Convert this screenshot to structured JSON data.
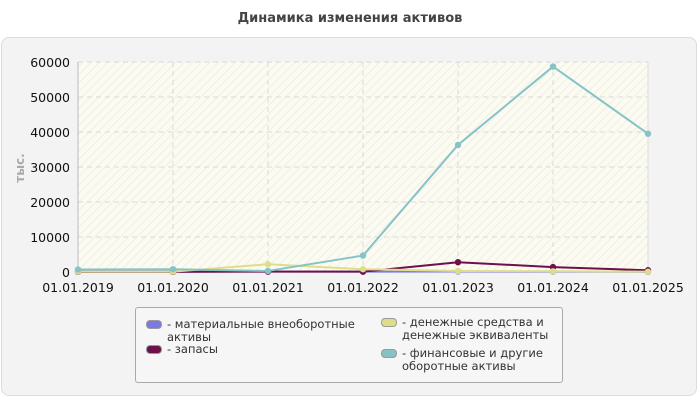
{
  "chart_data": {
    "type": "line",
    "title": "Динамика изменения активов",
    "ylabel": "тыс.",
    "xlabel": "",
    "categories": [
      "01.01.2019",
      "01.01.2020",
      "01.01.2021",
      "01.01.2022",
      "01.01.2023",
      "01.01.2024",
      "01.01.2025"
    ],
    "ylim": [
      0,
      60000
    ],
    "yticks": [
      "0",
      "10000",
      "20000",
      "30000",
      "40000",
      "50000",
      "60000"
    ],
    "grid": true,
    "legend_position": "bottom",
    "series": [
      {
        "name": "- материальные внеоборотные активы",
        "color": "#7b78e8",
        "values": [
          200,
          200,
          150,
          100,
          150,
          100,
          50
        ]
      },
      {
        "name": "- запасы",
        "color": "#6e1049",
        "values": [
          50,
          50,
          100,
          100,
          2800,
          1400,
          500
        ]
      },
      {
        "name": "- денежные средства и денежные эквиваленты",
        "color": "#dede8a",
        "values": [
          100,
          100,
          2200,
          800,
          300,
          200,
          100
        ]
      },
      {
        "name": "- финансовые и другие оборотные активы",
        "color": "#86c3c7",
        "values": [
          700,
          800,
          300,
          4700,
          36300,
          58700,
          39500
        ]
      }
    ]
  }
}
